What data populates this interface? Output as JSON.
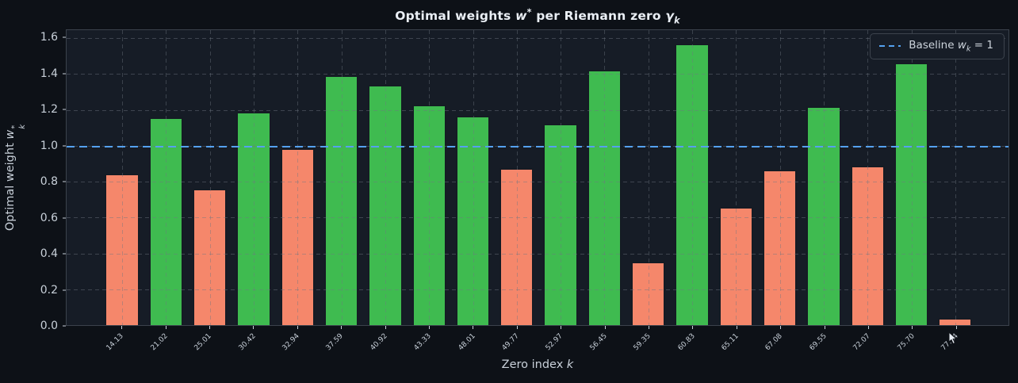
{
  "title": {
    "prefix": "Optimal weights ",
    "w": "w",
    "star": "*",
    "mid": " per Riemann zero ",
    "gamma": "γ",
    "gamma_sub": "k"
  },
  "axes": {
    "ylabel": {
      "prefix": "Optimal weight ",
      "w": "w",
      "sup": "*",
      "sub": "k"
    },
    "xlabel": {
      "prefix": "Zero index ",
      "k": "k"
    }
  },
  "legend": {
    "prefix": "Baseline ",
    "w": "w",
    "sub": "k",
    "eq": " = 1"
  },
  "colors": {
    "background": "#0d1117",
    "plot_background": "#161c26",
    "green_bar": "#3fbb50",
    "salmon_bar": "#f5876b",
    "baseline_blue": "#55a1f0",
    "grid": "#6e7681",
    "text": "#c8d0d9",
    "title_text": "#eaeff5",
    "spine": "#3b424c"
  },
  "chart_data": {
    "type": "bar",
    "title": "Optimal weights w* per Riemann zero γ_k",
    "xlabel": "Zero index k",
    "ylabel": "Optimal weight w*_k",
    "categories": [
      "14.13",
      "21.02",
      "25.01",
      "30.42",
      "32.94",
      "37.59",
      "40.92",
      "43.33",
      "48.01",
      "49.77",
      "52.97",
      "56.45",
      "59.35",
      "60.83",
      "65.11",
      "67.08",
      "69.55",
      "72.07",
      "75.70",
      "77.14"
    ],
    "values": [
      0.845,
      1.158,
      0.76,
      1.19,
      0.988,
      1.394,
      1.34,
      1.229,
      1.168,
      0.875,
      1.122,
      1.424,
      0.352,
      1.571,
      0.66,
      0.868,
      1.219,
      0.891,
      1.462,
      0.039
    ],
    "bar_colors": [
      "salmon",
      "green",
      "salmon",
      "green",
      "salmon",
      "green",
      "green",
      "green",
      "green",
      "salmon",
      "green",
      "green",
      "salmon",
      "green",
      "salmon",
      "salmon",
      "green",
      "salmon",
      "green",
      "salmon"
    ],
    "color_rule": "green if weight >= 1 else salmon",
    "yticks": [
      0.0,
      0.2,
      0.4,
      0.6,
      0.8,
      1.0,
      1.2,
      1.4,
      1.6
    ],
    "ylim": [
      0,
      1.645
    ],
    "baseline": {
      "value": 1.0,
      "label": "Baseline w_k = 1",
      "style": "dashed",
      "color": "#55a1f0"
    },
    "grid": true,
    "grid_over_bars": true,
    "legend_position": "upper right",
    "x_tick_rotation_deg": 45
  }
}
